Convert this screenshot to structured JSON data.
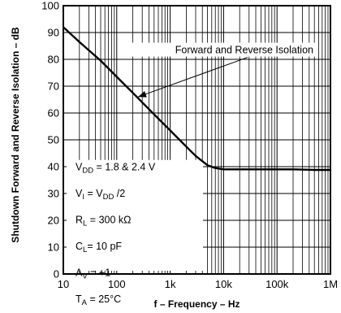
{
  "chart_data": {
    "type": "line",
    "xlabel": "f – Frequency – Hz",
    "ylabel": "Shutdown Forward and Reverse Isolation – dB",
    "x_scale": "log",
    "xlim": [
      10,
      1000000
    ],
    "ylim": [
      0,
      100
    ],
    "x_ticks": [
      {
        "value": 10,
        "label": "10"
      },
      {
        "value": 100,
        "label": "100"
      },
      {
        "value": 1000,
        "label": "1k"
      },
      {
        "value": 10000,
        "label": "10k"
      },
      {
        "value": 100000,
        "label": "100k"
      },
      {
        "value": 1000000,
        "label": "1M"
      }
    ],
    "y_ticks": [
      0,
      10,
      20,
      30,
      40,
      50,
      60,
      70,
      80,
      90,
      100
    ],
    "grid": true,
    "series": [
      {
        "name": "Forward and Reverse Isolation",
        "x": [
          10,
          20,
          50,
          100,
          200,
          500,
          1000,
          2000,
          3000,
          5000,
          7000,
          10000,
          20000,
          50000,
          100000,
          200000,
          500000,
          1000000
        ],
        "y": [
          92,
          86.5,
          79.5,
          73.5,
          67.5,
          59.5,
          53.5,
          47.5,
          44,
          40.5,
          39.5,
          39,
          39,
          39,
          39,
          39,
          38.8,
          38.8
        ]
      }
    ],
    "annotation": {
      "text": "Forward and Reverse Isolation",
      "target_x": 250,
      "target_y": 66
    },
    "conditions": [
      {
        "main": "V",
        "sub": "DD",
        "rest": " = 1.8 & 2.4 V"
      },
      {
        "main": "V",
        "sub": "I",
        "rest": " = V",
        "sub2": "DD",
        "rest2": " /2"
      },
      {
        "main": "R",
        "sub": "L",
        "rest": " = 300 kΩ"
      },
      {
        "main": "C",
        "sub": "L",
        "rest": "= 10 pF"
      },
      {
        "main": "A",
        "sub": "V",
        "rest": " = +1"
      },
      {
        "main": "T",
        "sub": "A",
        "rest": " = 25°C"
      }
    ]
  }
}
